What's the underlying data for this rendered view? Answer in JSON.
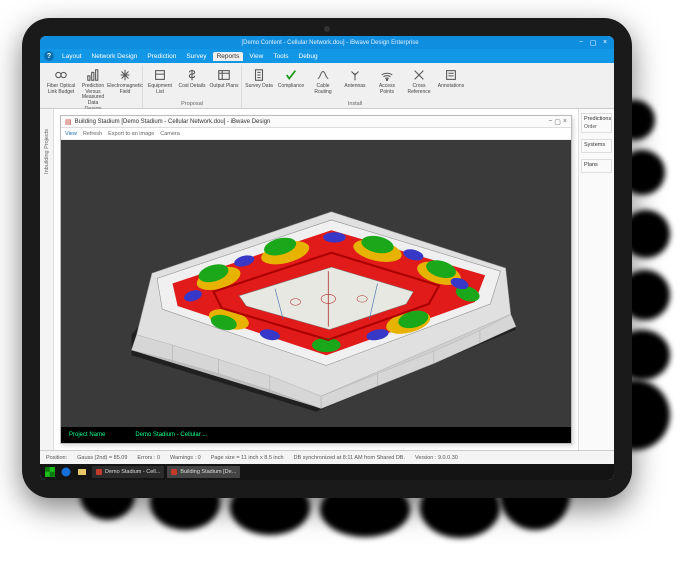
{
  "window": {
    "title": "[Demo Content - Cellular Network.dou] - iBwave Design Enterprise",
    "accent_color": "#0f8ee0",
    "help_icon": "?"
  },
  "menu": {
    "items": [
      "Layout",
      "Network Design",
      "Prediction",
      "Survey",
      "Reports",
      "View",
      "Tools",
      "Debug"
    ],
    "active_index": 4
  },
  "ribbon": {
    "groups": [
      {
        "label": "Design",
        "items": [
          {
            "icon": "fiber",
            "label": "Fiber Optical Link Budget"
          },
          {
            "icon": "chart",
            "label": "Prediction Versus Measured Data"
          },
          {
            "icon": "emf",
            "label": "Electromagnetic Field"
          }
        ]
      },
      {
        "label": "Proposal",
        "items": [
          {
            "icon": "box",
            "label": "Equipment List"
          },
          {
            "icon": "dollar",
            "label": "Cost Details"
          },
          {
            "icon": "plans",
            "label": "Output Plans"
          }
        ]
      },
      {
        "label": "Install",
        "items": [
          {
            "icon": "survey",
            "label": "Survey Data"
          },
          {
            "icon": "check",
            "label": "Compliance"
          },
          {
            "icon": "cable",
            "label": "Cable Routing"
          },
          {
            "icon": "antenna",
            "label": "Antennas"
          },
          {
            "icon": "wifi",
            "label": "Access Points"
          },
          {
            "icon": "xref",
            "label": "Cross Reference"
          },
          {
            "icon": "note",
            "label": "Annotations"
          }
        ]
      }
    ]
  },
  "canvas": {
    "title_icon": "building",
    "title": "Building Stadium [Demo Stadium - Cellular Network.dou] - iBwave Design",
    "toolbar": [
      "View",
      "Refresh",
      "Export to an image",
      "Camera"
    ],
    "project_label": "Project Name",
    "project_value": "Demo Stadium - Cellular ...",
    "bg_color": "#3a3a3a"
  },
  "stadium": {
    "field_color": "#d8d8d0",
    "outer_wall": "#e8e8e8",
    "shadow": "#2a2a2a",
    "heatmap_colors": {
      "high": "#e11a1a",
      "medhigh": "#e8b300",
      "med": "#1aa81a",
      "low": "#3838c8"
    }
  },
  "side_tabs": {
    "left": [
      "Inbuilding Projects"
    ]
  },
  "right_panel": {
    "sections": [
      {
        "title": "Predictions",
        "items": [
          "Order"
        ]
      },
      {
        "title": "Systems"
      },
      {
        "title": "Plans"
      }
    ]
  },
  "status": {
    "position_label": "Position:",
    "gauss_label": "Gauss (2nd) = 85.09",
    "errors": "Errors : 0",
    "warnings": "Warnings : 0",
    "page": "Page size = 11 inch x 8.5 inch",
    "db": "DB synchronized at 8:11 AM from Shared DB.",
    "version": "Version : 9.0.0.30"
  },
  "taskbar": {
    "tasks": [
      {
        "label": "Demo Stadium - Cell...",
        "active": false
      },
      {
        "label": "Building Stadium [De...",
        "active": true
      }
    ]
  }
}
